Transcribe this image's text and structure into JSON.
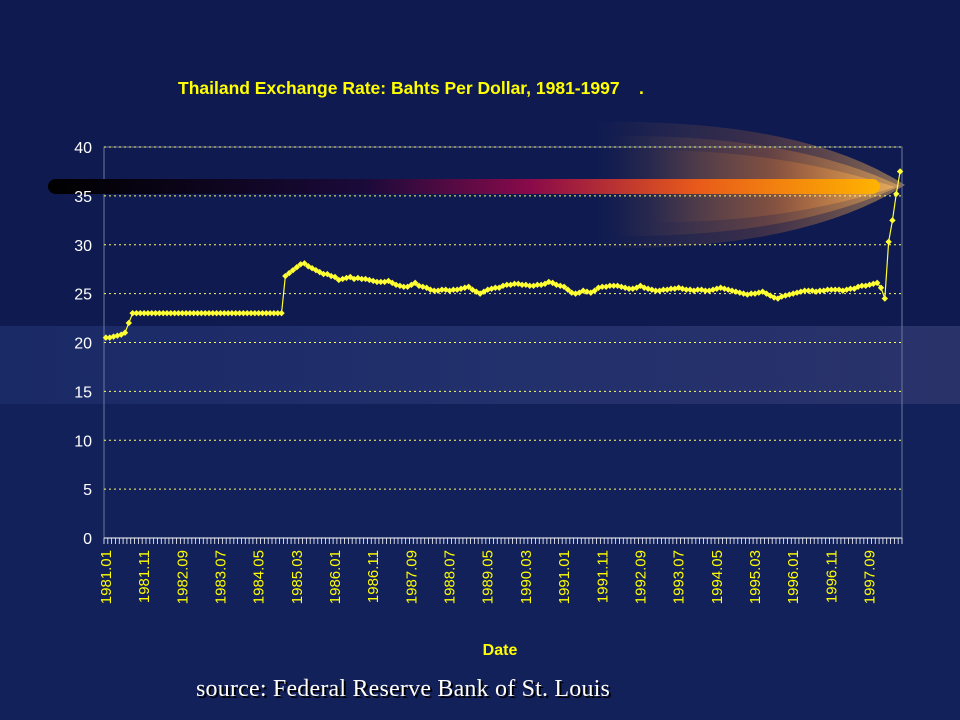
{
  "slide": {
    "source_note": "source: Federal Reserve Bank of St. Louis"
  },
  "colors": {
    "background": "#13215a",
    "plot_area": "#102060",
    "series": "#ffff33",
    "title": "#ffff00",
    "grid": "#ffff66"
  },
  "chart_data": {
    "type": "line",
    "title": "Thailand Exchange Rate: Bahts Per Dollar, 1981-1997    .",
    "xlabel": "Date",
    "ylabel": "",
    "ylim": [
      0,
      40
    ],
    "yticks": [
      0,
      5,
      10,
      15,
      20,
      25,
      30,
      35,
      40
    ],
    "grid": true,
    "legend": "none",
    "xtick_labels": [
      "1981.01",
      "1981.11",
      "1982.09",
      "1983.07",
      "1984.05",
      "1985.03",
      "1986.01",
      "1986.11",
      "1987.09",
      "1988.07",
      "1989.05",
      "1990.03",
      "1991.01",
      "1991.11",
      "1992.09",
      "1993.07",
      "1994.05",
      "1995.03",
      "1996.01",
      "1996.11",
      "1997.09"
    ],
    "series": [
      {
        "values": [
          20.5,
          20.5,
          20.6,
          20.7,
          20.8,
          21.0,
          22.0,
          23.0,
          23.0,
          23.0,
          23.0,
          23.0,
          23.0,
          23.0,
          23.0,
          23.0,
          23.0,
          23.0,
          23.0,
          23.0,
          23.0,
          23.0,
          23.0,
          23.0,
          23.0,
          23.0,
          23.0,
          23.0,
          23.0,
          23.0,
          23.0,
          23.0,
          23.0,
          23.0,
          23.0,
          23.0,
          23.0,
          23.0,
          23.0,
          23.0,
          23.0,
          23.0,
          23.0,
          23.0,
          23.0,
          23.0,
          23.0,
          26.8,
          27.1,
          27.4,
          27.7,
          28.0,
          28.1,
          27.8,
          27.6,
          27.4,
          27.2,
          27.0,
          27.0,
          26.8,
          26.7,
          26.4,
          26.5,
          26.6,
          26.7,
          26.5,
          26.6,
          26.5,
          26.5,
          26.4,
          26.3,
          26.2,
          26.2,
          26.2,
          26.3,
          26.1,
          25.9,
          25.8,
          25.7,
          25.7,
          25.9,
          26.1,
          25.8,
          25.7,
          25.6,
          25.4,
          25.3,
          25.3,
          25.4,
          25.4,
          25.3,
          25.4,
          25.4,
          25.5,
          25.6,
          25.7,
          25.4,
          25.2,
          25.0,
          25.2,
          25.4,
          25.5,
          25.6,
          25.6,
          25.8,
          25.9,
          25.9,
          26.0,
          26.0,
          25.9,
          25.9,
          25.8,
          25.8,
          25.9,
          25.9,
          26.0,
          26.2,
          26.1,
          25.9,
          25.8,
          25.7,
          25.4,
          25.1,
          25.0,
          25.1,
          25.3,
          25.2,
          25.1,
          25.3,
          25.6,
          25.7,
          25.7,
          25.8,
          25.8,
          25.8,
          25.7,
          25.6,
          25.5,
          25.5,
          25.6,
          25.8,
          25.6,
          25.5,
          25.4,
          25.3,
          25.3,
          25.4,
          25.4,
          25.5,
          25.5,
          25.6,
          25.5,
          25.4,
          25.4,
          25.3,
          25.4,
          25.4,
          25.3,
          25.3,
          25.4,
          25.5,
          25.6,
          25.5,
          25.4,
          25.3,
          25.2,
          25.1,
          25.0,
          24.9,
          25.0,
          25.0,
          25.1,
          25.2,
          25.0,
          24.8,
          24.6,
          24.5,
          24.7,
          24.8,
          24.9,
          25.0,
          25.1,
          25.2,
          25.3,
          25.3,
          25.3,
          25.2,
          25.3,
          25.3,
          25.4,
          25.4,
          25.4,
          25.4,
          25.3,
          25.4,
          25.5,
          25.5,
          25.7,
          25.8,
          25.8,
          25.9,
          26.0,
          26.1,
          25.6,
          24.5,
          30.3,
          32.5,
          35.2,
          37.5
        ]
      }
    ]
  }
}
